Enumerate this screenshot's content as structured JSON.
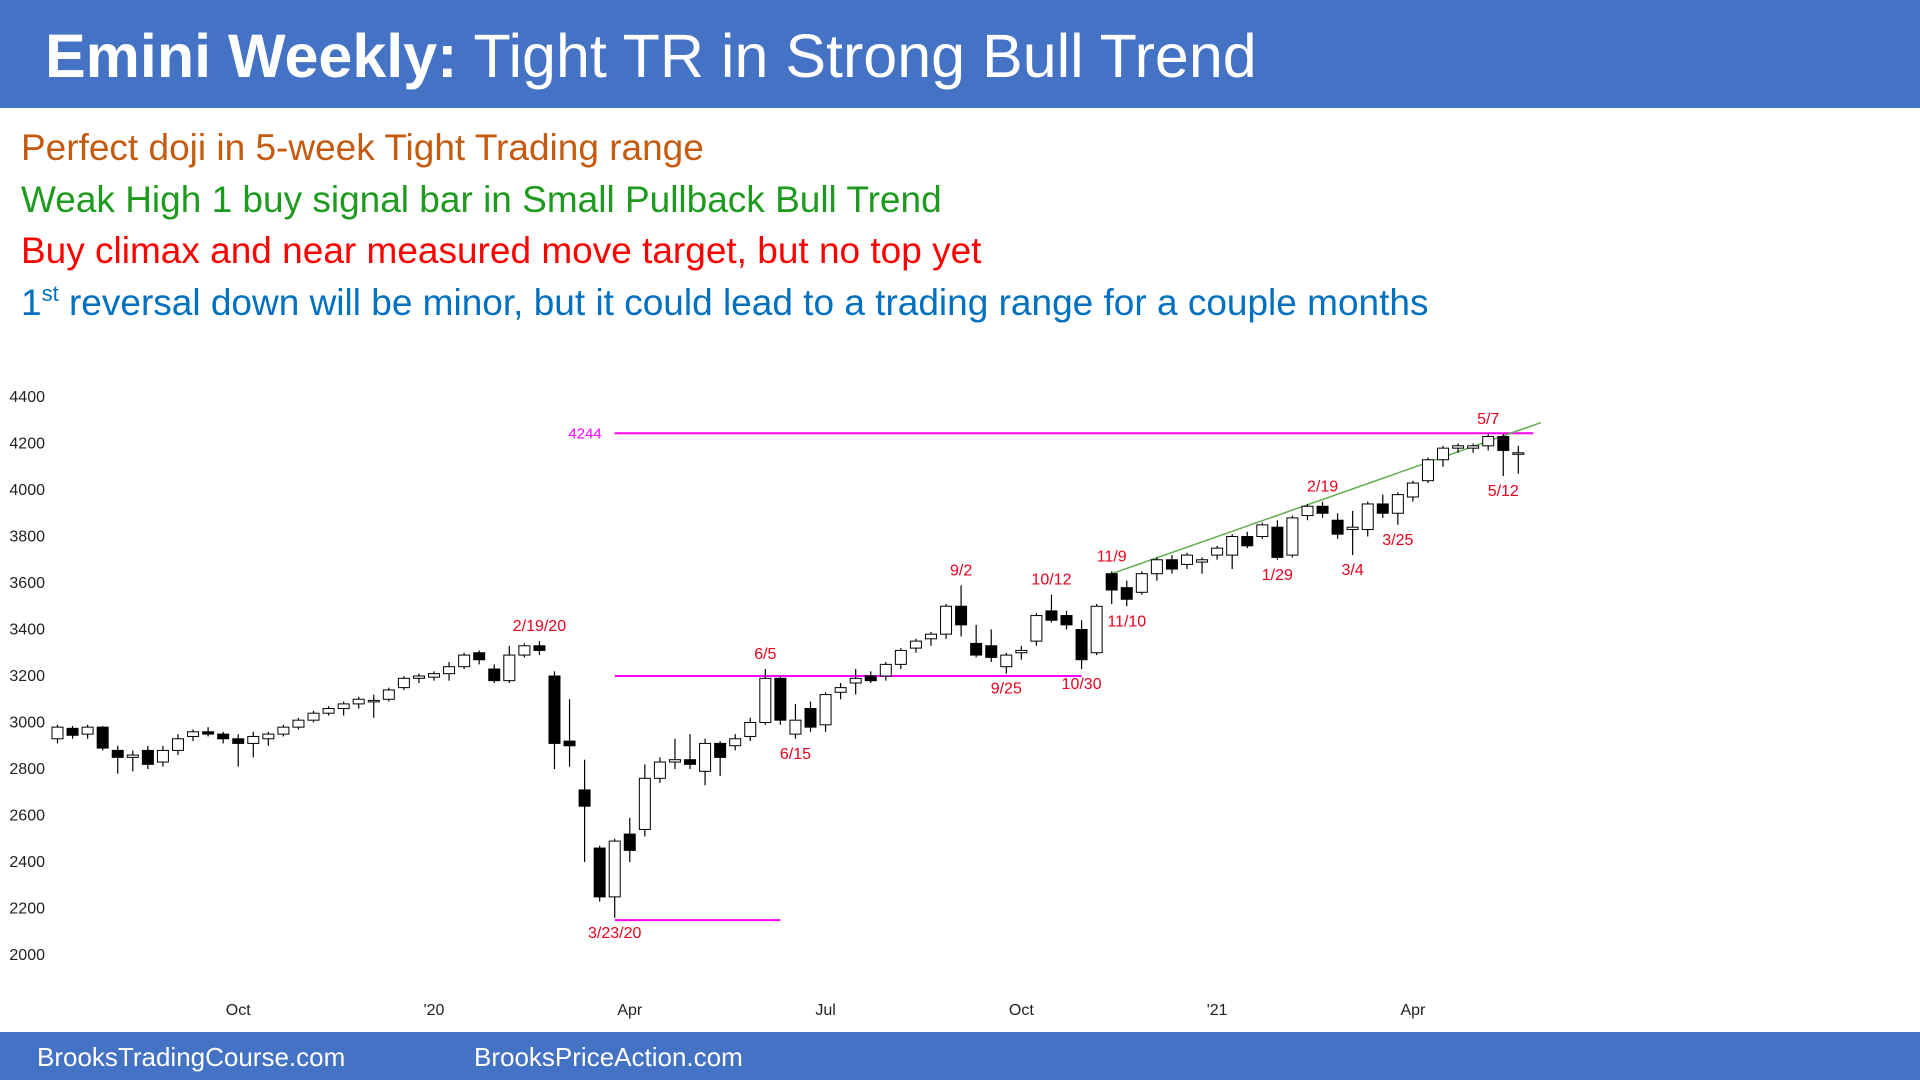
{
  "header": {
    "title_bold": "Emini Weekly:",
    "title_rest": "Tight TR in Strong Bull Trend"
  },
  "notes": [
    {
      "text": "Perfect doji in 5-week Tight Trading range",
      "color": "#c55a11"
    },
    {
      "text": "Weak High 1 buy signal bar in Small Pullback Bull Trend",
      "color": "#1e9a1e"
    },
    {
      "text": "Buy climax and near measured move target, but no top yet",
      "color": "#ff0000"
    },
    {
      "ordinal": "1",
      "superscript": "st",
      "text": " reversal down will be minor, but it could lead to a trading range for a couple months",
      "color": "#0070c0"
    }
  ],
  "footer": [
    "BrooksTradingCourse.com",
    "BrooksPriceAction.com"
  ],
  "chart_data": {
    "type": "candlestick",
    "categories": [
      null,
      null,
      null,
      null,
      null,
      null,
      null,
      null,
      null,
      null,
      null,
      null,
      "Oct",
      null,
      null,
      null,
      null,
      null,
      null,
      null,
      null,
      null,
      null,
      null,
      null,
      "'20",
      null,
      null,
      null,
      null,
      null,
      null,
      null,
      null,
      null,
      null,
      null,
      null,
      "Apr",
      null,
      null,
      null,
      null,
      null,
      null,
      null,
      null,
      null,
      null,
      null,
      null,
      "Jul",
      null,
      null,
      null,
      null,
      null,
      null,
      null,
      null,
      null,
      null,
      null,
      null,
      "Oct",
      null,
      null,
      null,
      null,
      null,
      null,
      null,
      null,
      null,
      null,
      null,
      null,
      "'21",
      null,
      null,
      null,
      null,
      null,
      null,
      null,
      null,
      null,
      null,
      null,
      null,
      "Apr",
      null,
      null,
      null,
      null,
      null,
      null,
      null
    ],
    "open": [
      2930,
      2975,
      2950,
      2980,
      2880,
      2850,
      2880,
      2830,
      2880,
      2940,
      2960,
      2950,
      2930,
      2910,
      2930,
      2950,
      2980,
      3010,
      3040,
      3060,
      3080,
      3090,
      3100,
      3150,
      3190,
      3195,
      3210,
      3240,
      3300,
      3230,
      3180,
      3290,
      3330,
      3200,
      2920,
      2710,
      2460,
      2250,
      2520,
      2540,
      2760,
      2830,
      2840,
      2790,
      2910,
      2900,
      2940,
      3000,
      3190,
      2950,
      3060,
      2990,
      3130,
      3170,
      3200,
      3200,
      3250,
      3320,
      3360,
      3380,
      3500,
      3340,
      3330,
      3240,
      3300,
      3350,
      3480,
      3460,
      3400,
      3300,
      3640,
      3580,
      3560,
      3640,
      3700,
      3680,
      3690,
      3720,
      3720,
      3800,
      3800,
      3840,
      3720,
      3890,
      3930,
      3870,
      3830,
      3830,
      3940,
      3900,
      3970,
      4040,
      4130,
      4180,
      4180,
      4190,
      4230,
      4160
    ],
    "high": [
      2990,
      2985,
      2990,
      2985,
      2900,
      2880,
      2900,
      2900,
      2950,
      2970,
      2980,
      2960,
      2950,
      2960,
      2960,
      2990,
      3020,
      3050,
      3070,
      3090,
      3110,
      3120,
      3150,
      3200,
      3210,
      3220,
      3260,
      3300,
      3310,
      3250,
      3330,
      3340,
      3350,
      3220,
      3100,
      2840,
      2470,
      2500,
      2590,
      2820,
      2850,
      2930,
      2950,
      2930,
      2920,
      2950,
      3020,
      3230,
      3200,
      3080,
      3090,
      3130,
      3170,
      3230,
      3220,
      3260,
      3320,
      3360,
      3390,
      3510,
      3590,
      3420,
      3400,
      3300,
      3330,
      3470,
      3550,
      3480,
      3440,
      3510,
      3650,
      3610,
      3650,
      3710,
      3720,
      3730,
      3710,
      3760,
      3810,
      3820,
      3860,
      3870,
      3890,
      3940,
      3950,
      3900,
      3910,
      3950,
      3980,
      3990,
      4040,
      4140,
      4190,
      4200,
      4200,
      4240,
      4240,
      4190
    ],
    "low": [
      2910,
      2930,
      2930,
      2880,
      2780,
      2790,
      2800,
      2810,
      2860,
      2920,
      2940,
      2910,
      2810,
      2850,
      2900,
      2940,
      2970,
      3000,
      3030,
      3030,
      3060,
      3020,
      3090,
      3140,
      3170,
      3180,
      3180,
      3230,
      3250,
      3170,
      3170,
      3280,
      3290,
      2800,
      2810,
      2400,
      2230,
      2160,
      2400,
      2510,
      2740,
      2800,
      2800,
      2730,
      2770,
      2880,
      2920,
      2990,
      2990,
      2930,
      2960,
      2960,
      3100,
      3120,
      3170,
      3180,
      3230,
      3300,
      3330,
      3360,
      3370,
      3280,
      3260,
      3210,
      3270,
      3330,
      3430,
      3400,
      3230,
      3290,
      3510,
      3500,
      3550,
      3610,
      3640,
      3660,
      3640,
      3700,
      3660,
      3750,
      3790,
      3700,
      3710,
      3870,
      3880,
      3790,
      3720,
      3800,
      3880,
      3850,
      3950,
      4030,
      4100,
      4160,
      4160,
      4170,
      4060,
      4070
    ],
    "close": [
      2980,
      2945,
      2980,
      2890,
      2850,
      2860,
      2820,
      2880,
      2930,
      2960,
      2950,
      2930,
      2910,
      2940,
      2950,
      2980,
      3010,
      3040,
      3060,
      3080,
      3100,
      3095,
      3140,
      3190,
      3200,
      3210,
      3240,
      3290,
      3270,
      3180,
      3290,
      3330,
      3310,
      2910,
      2900,
      2640,
      2250,
      2490,
      2450,
      2760,
      2830,
      2840,
      2820,
      2910,
      2850,
      2930,
      3000,
      3190,
      3010,
      3010,
      2980,
      3120,
      3150,
      3190,
      3180,
      3250,
      3310,
      3350,
      3380,
      3500,
      3420,
      3290,
      3280,
      3290,
      3310,
      3460,
      3440,
      3420,
      3270,
      3500,
      3570,
      3530,
      3640,
      3700,
      3660,
      3720,
      3700,
      3750,
      3800,
      3760,
      3850,
      3710,
      3880,
      3930,
      3900,
      3810,
      3840,
      3940,
      3900,
      3980,
      4030,
      4130,
      4180,
      4190,
      4190,
      4230,
      4170,
      4160
    ],
    "ylim": [
      2000,
      4400
    ],
    "yticks": [
      2000,
      2200,
      2400,
      2600,
      2800,
      3000,
      3200,
      3400,
      3600,
      3800,
      4000,
      4200,
      4400
    ],
    "level_lines": [
      {
        "value": 4244,
        "label": "4244",
        "start": 37,
        "end": 98,
        "color": "#ff00ff"
      },
      {
        "value": 3200,
        "start": 37,
        "end": 68,
        "color": "#ff00ff"
      },
      {
        "value": 2150,
        "start": 37,
        "end": 48,
        "color": "#ff00ff"
      }
    ],
    "trend_line": {
      "x": [
        70,
        98.5
      ],
      "y": [
        3640,
        4290
      ],
      "color": "#5fae4e"
    },
    "annotations": [
      {
        "text": "2/19/20",
        "index": 32,
        "side": "above"
      },
      {
        "text": "3/23/20",
        "index": 37,
        "side": "below"
      },
      {
        "text": "6/5",
        "index": 47,
        "side": "above"
      },
      {
        "text": "6/15",
        "index": 49,
        "side": "below"
      },
      {
        "text": "9/2",
        "index": 60,
        "side": "above"
      },
      {
        "text": "9/25",
        "index": 63,
        "side": "below"
      },
      {
        "text": "10/12",
        "index": 66,
        "side": "above"
      },
      {
        "text": "10/30",
        "index": 68,
        "side": "below"
      },
      {
        "text": "11/9",
        "index": 70,
        "side": "above"
      },
      {
        "text": "11/10",
        "index": 71,
        "side": "below"
      },
      {
        "text": "1/29",
        "index": 81,
        "side": "below"
      },
      {
        "text": "2/19",
        "index": 84,
        "side": "above"
      },
      {
        "text": "3/4",
        "index": 86,
        "side": "below"
      },
      {
        "text": "3/25",
        "index": 89,
        "side": "below"
      },
      {
        "text": "5/7",
        "index": 95,
        "side": "above"
      },
      {
        "text": "5/12",
        "index": 96,
        "side": "below"
      }
    ],
    "annotation_color": "#e8001c"
  }
}
